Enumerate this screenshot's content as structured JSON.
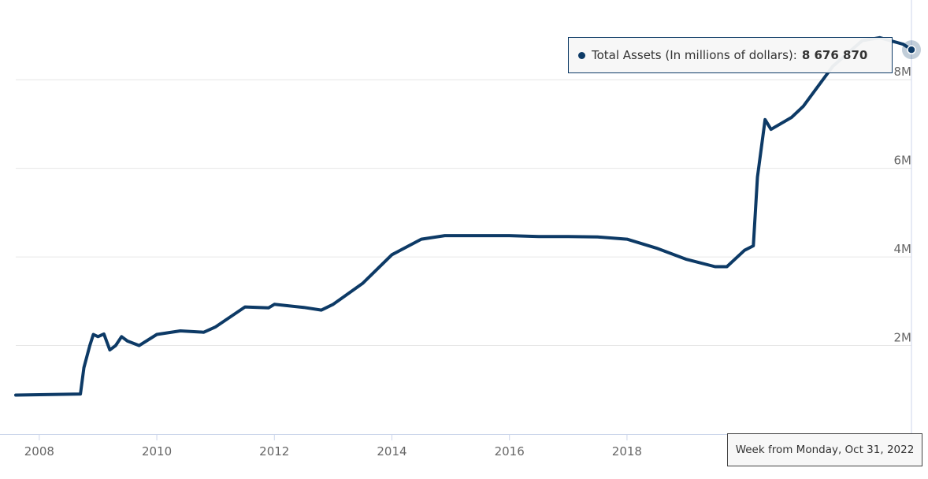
{
  "chart_data": {
    "type": "line",
    "title": "",
    "xlabel": "",
    "ylabel": "",
    "x_ticks": [
      "2008",
      "2010",
      "2012",
      "2014",
      "2016",
      "2018"
    ],
    "y_ticks": [
      "2M",
      "4M",
      "6M",
      "8M"
    ],
    "ylim": [
      0,
      9800000
    ],
    "xlim": [
      2007.6,
      2022.84
    ],
    "grid": true,
    "line_color": "#0d3a66",
    "series": [
      {
        "name": "Total Assets (In millions of dollars)",
        "points": [
          [
            2007.6,
            880000
          ],
          [
            2008.0,
            890000
          ],
          [
            2008.5,
            900000
          ],
          [
            2008.7,
            905000
          ],
          [
            2008.76,
            1500000
          ],
          [
            2008.86,
            2000000
          ],
          [
            2008.92,
            2250000
          ],
          [
            2009.0,
            2200000
          ],
          [
            2009.1,
            2260000
          ],
          [
            2009.2,
            1900000
          ],
          [
            2009.3,
            2000000
          ],
          [
            2009.4,
            2200000
          ],
          [
            2009.5,
            2100000
          ],
          [
            2009.7,
            2000000
          ],
          [
            2010.0,
            2250000
          ],
          [
            2010.4,
            2330000
          ],
          [
            2010.8,
            2300000
          ],
          [
            2011.0,
            2420000
          ],
          [
            2011.5,
            2870000
          ],
          [
            2011.9,
            2850000
          ],
          [
            2012.0,
            2930000
          ],
          [
            2012.5,
            2860000
          ],
          [
            2012.8,
            2800000
          ],
          [
            2013.0,
            2930000
          ],
          [
            2013.5,
            3400000
          ],
          [
            2014.0,
            4050000
          ],
          [
            2014.5,
            4400000
          ],
          [
            2014.9,
            4480000
          ],
          [
            2015.5,
            4480000
          ],
          [
            2016.0,
            4480000
          ],
          [
            2016.5,
            4460000
          ],
          [
            2017.0,
            4460000
          ],
          [
            2017.5,
            4450000
          ],
          [
            2018.0,
            4400000
          ],
          [
            2018.5,
            4200000
          ],
          [
            2019.0,
            3950000
          ],
          [
            2019.5,
            3780000
          ],
          [
            2019.7,
            3780000
          ],
          [
            2020.0,
            4150000
          ],
          [
            2020.15,
            4250000
          ],
          [
            2020.22,
            5800000
          ],
          [
            2020.35,
            7100000
          ],
          [
            2020.45,
            6880000
          ],
          [
            2020.8,
            7150000
          ],
          [
            2021.0,
            7400000
          ],
          [
            2021.5,
            8300000
          ],
          [
            2022.0,
            8880000
          ],
          [
            2022.3,
            8950000
          ],
          [
            2022.7,
            8800000
          ],
          [
            2022.84,
            8676870
          ]
        ]
      }
    ]
  },
  "tooltip": {
    "series_label": "Total Assets (In millions of dollars):",
    "value": "8 676 870",
    "date_label": "Week from Monday, Oct 31, 2022"
  }
}
